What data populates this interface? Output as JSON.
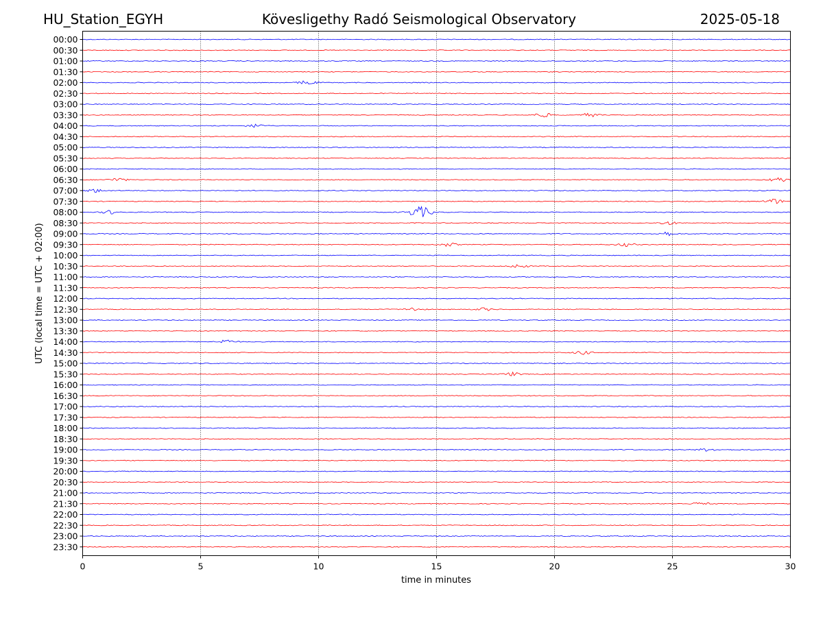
{
  "header": {
    "station": "HU_Station_EGYH",
    "title": "Kövesligethy Radó Seismological Observatory",
    "date": "2025-05-18"
  },
  "chart_data": {
    "type": "line",
    "title": "Kövesligethy Radó Seismological Observatory",
    "xlabel": "time in minutes",
    "ylabel": "UTC (local time = UTC + 02:00)",
    "xlim": [
      0,
      30
    ],
    "xticks": [
      0,
      5,
      10,
      15,
      20,
      25,
      30
    ],
    "xtick_labels": [
      "0",
      "5",
      "10",
      "15",
      "20",
      "25",
      "30"
    ],
    "grid": "vertical dotted at x ticks",
    "row_labels": [
      "00:00",
      "00:30",
      "01:00",
      "01:30",
      "02:00",
      "02:30",
      "03:00",
      "03:30",
      "04:00",
      "04:30",
      "05:00",
      "05:30",
      "06:00",
      "06:30",
      "07:00",
      "07:30",
      "08:00",
      "08:30",
      "09:00",
      "09:30",
      "10:00",
      "10:30",
      "11:00",
      "11:30",
      "12:00",
      "12:30",
      "13:00",
      "13:30",
      "14:00",
      "14:30",
      "15:00",
      "15:30",
      "16:00",
      "16:30",
      "17:00",
      "17:30",
      "18:00",
      "18:30",
      "19:00",
      "19:30",
      "20:00",
      "20:30",
      "21:00",
      "21:30",
      "22:00",
      "22:30",
      "23:00",
      "23:30"
    ],
    "row_colors": [
      "#0000ff",
      "#ff0000"
    ],
    "events": [
      {
        "row": "02:00",
        "x": 9.5,
        "amplitude": 3
      },
      {
        "row": "03:30",
        "x": 19.5,
        "amplitude": 3
      },
      {
        "row": "03:30",
        "x": 21.5,
        "amplitude": 2.5
      },
      {
        "row": "04:00",
        "x": 7.3,
        "amplitude": 2.5
      },
      {
        "row": "06:30",
        "x": 1.5,
        "amplitude": 2.5
      },
      {
        "row": "06:30",
        "x": 29.5,
        "amplitude": 3.5
      },
      {
        "row": "07:00",
        "x": 0.5,
        "amplitude": 2.5
      },
      {
        "row": "07:30",
        "x": 29.3,
        "amplitude": 3.5
      },
      {
        "row": "08:00",
        "x": 14.3,
        "amplitude": 8
      },
      {
        "row": "08:00",
        "x": 1.2,
        "amplitude": 2.5
      },
      {
        "row": "08:30",
        "x": 24.8,
        "amplitude": 2.5
      },
      {
        "row": "09:00",
        "x": 24.7,
        "amplitude": 3
      },
      {
        "row": "09:30",
        "x": 15.5,
        "amplitude": 2.5
      },
      {
        "row": "09:30",
        "x": 23.0,
        "amplitude": 2.5
      },
      {
        "row": "10:30",
        "x": 18.5,
        "amplitude": 2.5
      },
      {
        "row": "12:30",
        "x": 14.0,
        "amplitude": 2.5
      },
      {
        "row": "12:30",
        "x": 17.0,
        "amplitude": 2
      },
      {
        "row": "14:00",
        "x": 6.1,
        "amplitude": 3
      },
      {
        "row": "14:30",
        "x": 21.2,
        "amplitude": 2.5
      },
      {
        "row": "15:30",
        "x": 18.2,
        "amplitude": 2.5
      },
      {
        "row": "19:00",
        "x": 26.5,
        "amplitude": 2
      },
      {
        "row": "21:30",
        "x": 26.2,
        "amplitude": 2
      }
    ]
  }
}
